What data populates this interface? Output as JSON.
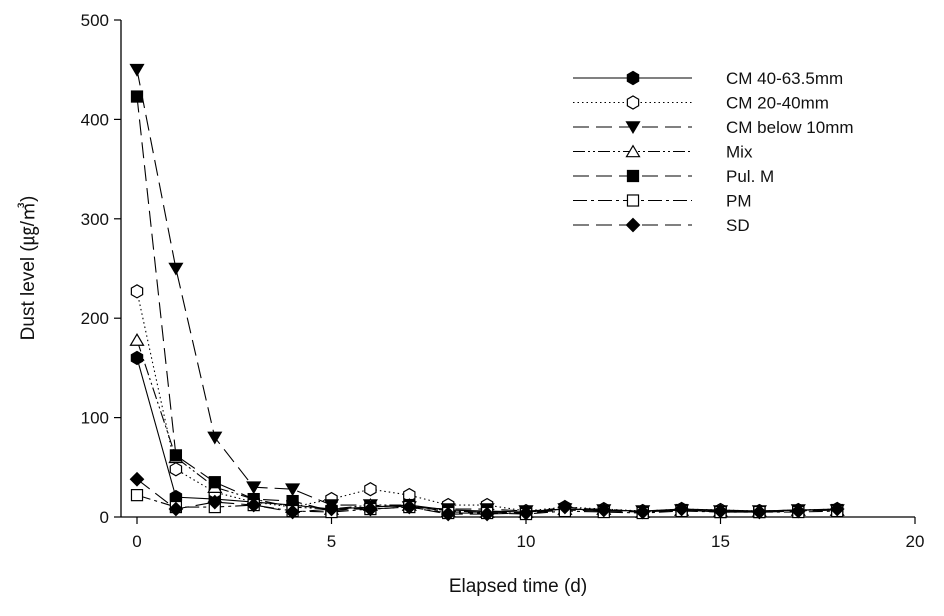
{
  "chart_data": {
    "type": "line",
    "xlabel": "Elapsed time (d)",
    "ylabel": "Dust level (㎍/㎥)",
    "xlim": [
      0,
      20
    ],
    "ylim": [
      0,
      500
    ],
    "xticks": [
      0,
      5,
      10,
      15,
      20
    ],
    "yticks": [
      0,
      100,
      200,
      300,
      400,
      500
    ],
    "grid": false,
    "legend_position": "top-right",
    "x": [
      0,
      1,
      2,
      3,
      4,
      5,
      6,
      7,
      8,
      9,
      10,
      11,
      12,
      13,
      14,
      15,
      16,
      17,
      18
    ],
    "series": [
      {
        "name": "CM 40-63.5mm",
        "marker": "hexagon-filled",
        "dash": "solid",
        "values": [
          160,
          20,
          18,
          15,
          12,
          8,
          10,
          12,
          7,
          6,
          5,
          8,
          7,
          6,
          8,
          7,
          6,
          7,
          8
        ]
      },
      {
        "name": "CM 20-40mm",
        "marker": "hexagon-open",
        "dash": "dotted",
        "values": [
          227,
          48,
          25,
          15,
          10,
          18,
          28,
          22,
          12,
          12,
          6,
          10,
          8,
          6,
          8,
          7,
          6,
          7,
          8
        ]
      },
      {
        "name": "CM below 10mm",
        "marker": "triangle-down-filled",
        "dash": "long-dash",
        "values": [
          450,
          250,
          80,
          30,
          28,
          12,
          12,
          10,
          8,
          8,
          6,
          8,
          7,
          6,
          7,
          6,
          6,
          7,
          7
        ]
      },
      {
        "name": "Mix",
        "marker": "triangle-up-open",
        "dash": "dash-dot-dot",
        "values": [
          178,
          60,
          30,
          18,
          10,
          8,
          12,
          12,
          6,
          5,
          5,
          8,
          8,
          5,
          7,
          6,
          6,
          7,
          7
        ]
      },
      {
        "name": "Pul. M",
        "marker": "square-filled",
        "dash": "long-dash",
        "values": [
          423,
          62,
          35,
          18,
          16,
          6,
          10,
          12,
          5,
          5,
          4,
          7,
          6,
          5,
          7,
          5,
          5,
          6,
          7
        ]
      },
      {
        "name": "PM",
        "marker": "square-open",
        "dash": "dash-dot",
        "values": [
          22,
          10,
          10,
          12,
          6,
          5,
          8,
          10,
          4,
          4,
          3,
          6,
          5,
          4,
          6,
          5,
          5,
          5,
          6
        ]
      },
      {
        "name": "SD",
        "marker": "diamond-filled",
        "dash": "long-dash",
        "values": [
          38,
          8,
          15,
          12,
          5,
          8,
          8,
          10,
          3,
          3,
          4,
          10,
          7,
          5,
          8,
          6,
          5,
          6,
          8
        ]
      }
    ]
  }
}
